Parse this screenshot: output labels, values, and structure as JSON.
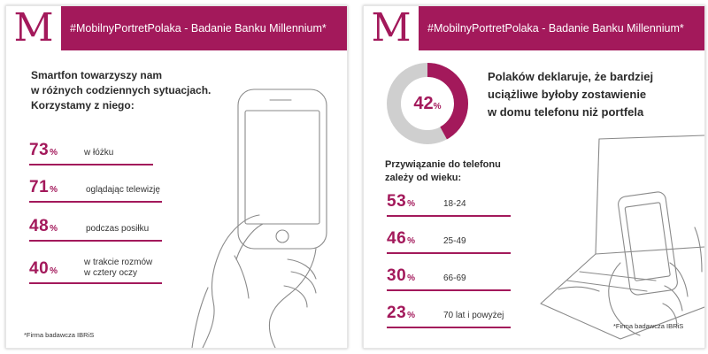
{
  "left": {
    "logo": "M",
    "title": "#MobilnyPortretPolaka - Badanie Banku Millennium*",
    "intro": [
      "Smartfon towarzyszy nam",
      "w różnych codziennych sytuacjach.",
      "Korzystamy z niego:"
    ],
    "stats": [
      {
        "value": "73",
        "unit": "%",
        "label": "w łóżku"
      },
      {
        "value": "71",
        "unit": "%",
        "label": "oglądając telewizję"
      },
      {
        "value": "48",
        "unit": "%",
        "label": "podczas posiłku"
      },
      {
        "value": "40",
        "unit": "%",
        "label_line1": "w trakcie rozmów",
        "label_line2": "w cztery oczy"
      }
    ],
    "footnote": "*Firma badawcza IBRiS"
  },
  "right": {
    "logo": "M",
    "title": "#MobilnyPortretPolaka - Badanie Banku Millennium*",
    "donut": {
      "value": "42",
      "unit": "%",
      "fraction": 0.42,
      "color": "#a3195b",
      "track_color": "#cfcfcf"
    },
    "claim": [
      "Polaków deklaruje, że bardziej",
      "uciążliwe byłoby zostawienie",
      "w domu telefonu niż portfela"
    ],
    "age_heading": [
      "Przywiązanie do telefonu",
      "zależy od wieku:"
    ],
    "ages": [
      {
        "value": "53",
        "unit": "%",
        "label": "18-24"
      },
      {
        "value": "46",
        "unit": "%",
        "label": "25-49"
      },
      {
        "value": "30",
        "unit": "%",
        "label": "66-69"
      },
      {
        "value": "23",
        "unit": "%",
        "label": "70 lat i powyżej"
      }
    ],
    "footnote": "*Firma badawcza IBRiS"
  },
  "colors": {
    "accent": "#a3195b",
    "text": "#2a2a2a"
  }
}
